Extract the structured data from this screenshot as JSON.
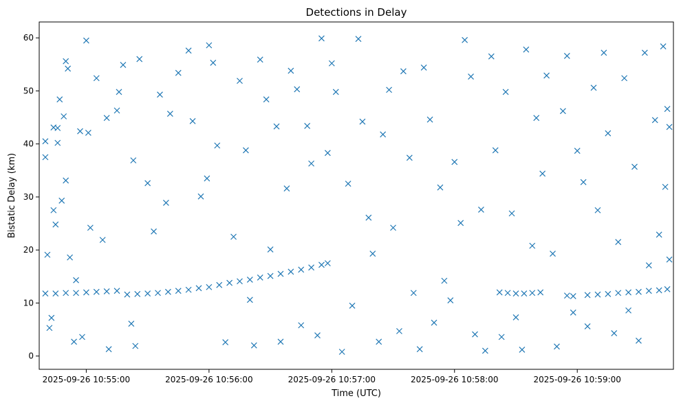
{
  "chart_data": {
    "type": "scatter",
    "title": "Detections in Delay",
    "xlabel": "Time (UTC)",
    "ylabel": "Bistatic Delay (km)",
    "marker": "x",
    "color": "#1f77b4",
    "grid": false,
    "legend": "none",
    "x_domain": [
      "2025-09-26 10:54:37",
      "2025-09-26 10:59:47"
    ],
    "ylim": [
      -2.5,
      63
    ],
    "xticks": [
      "2025-09-26 10:55:00",
      "2025-09-26 10:56:00",
      "2025-09-26 10:57:00",
      "2025-09-26 10:58:00",
      "2025-09-26 10:59:00"
    ],
    "yticks": [
      "0",
      "10",
      "20",
      "30",
      "40",
      "50",
      "60"
    ],
    "series": [
      {
        "name": "",
        "description": "Periodic target tracks (dense diagonal streaks)",
        "points": [
          [
            "2025-09-26 10:54:40",
            11.8
          ],
          [
            "2025-09-26 10:54:45",
            11.8
          ],
          [
            "2025-09-26 10:54:50",
            11.9
          ],
          [
            "2025-09-26 10:54:55",
            11.9
          ],
          [
            "2025-09-26 10:55:00",
            12.0
          ],
          [
            "2025-09-26 10:55:05",
            12.1
          ],
          [
            "2025-09-26 10:55:10",
            12.2
          ],
          [
            "2025-09-26 10:55:15",
            12.3
          ],
          [
            "2025-09-26 10:55:20",
            11.6
          ],
          [
            "2025-09-26 10:55:25",
            11.7
          ],
          [
            "2025-09-26 10:55:30",
            11.8
          ],
          [
            "2025-09-26 10:55:35",
            11.9
          ],
          [
            "2025-09-26 10:55:40",
            12.1
          ],
          [
            "2025-09-26 10:55:45",
            12.3
          ],
          [
            "2025-09-26 10:55:50",
            12.5
          ],
          [
            "2025-09-26 10:55:55",
            12.8
          ],
          [
            "2025-09-26 10:56:00",
            13.0
          ],
          [
            "2025-09-26 10:56:05",
            13.4
          ],
          [
            "2025-09-26 10:56:10",
            13.8
          ],
          [
            "2025-09-26 10:56:15",
            14.1
          ],
          [
            "2025-09-26 10:56:20",
            14.4
          ],
          [
            "2025-09-26 10:56:25",
            14.8
          ],
          [
            "2025-09-26 10:56:30",
            15.1
          ],
          [
            "2025-09-26 10:56:35",
            15.5
          ],
          [
            "2025-09-26 10:56:40",
            15.9
          ],
          [
            "2025-09-26 10:56:45",
            16.3
          ],
          [
            "2025-09-26 10:56:50",
            16.7
          ],
          [
            "2025-09-26 10:56:55",
            17.2
          ],
          [
            "2025-09-26 10:56:58",
            17.5
          ],
          [
            "2025-09-26 10:58:22",
            12.0
          ],
          [
            "2025-09-26 10:58:26",
            11.9
          ],
          [
            "2025-09-26 10:58:30",
            11.8
          ],
          [
            "2025-09-26 10:58:34",
            11.8
          ],
          [
            "2025-09-26 10:58:38",
            11.9
          ],
          [
            "2025-09-26 10:58:42",
            12.0
          ],
          [
            "2025-09-26 10:58:55",
            11.4
          ],
          [
            "2025-09-26 10:58:58",
            11.3
          ],
          [
            "2025-09-26 10:59:05",
            11.5
          ],
          [
            "2025-09-26 10:59:10",
            11.6
          ],
          [
            "2025-09-26 10:59:15",
            11.7
          ],
          [
            "2025-09-26 10:59:20",
            11.9
          ],
          [
            "2025-09-26 10:59:25",
            12.0
          ],
          [
            "2025-09-26 10:59:30",
            12.1
          ],
          [
            "2025-09-26 10:59:35",
            12.3
          ],
          [
            "2025-09-26 10:59:40",
            12.4
          ],
          [
            "2025-09-26 10:59:44",
            12.6
          ]
        ]
      },
      {
        "name": "",
        "description": "Scattered clutter detections (subset, estimated)",
        "points": [
          [
            "2025-09-26 10:54:40",
            37.5
          ],
          [
            "2025-09-26 10:54:40",
            40.5
          ],
          [
            "2025-09-26 10:54:41",
            19.1
          ],
          [
            "2025-09-26 10:54:42",
            5.3
          ],
          [
            "2025-09-26 10:54:43",
            7.2
          ],
          [
            "2025-09-26 10:54:44",
            43.1
          ],
          [
            "2025-09-26 10:54:44",
            27.5
          ],
          [
            "2025-09-26 10:54:45",
            24.8
          ],
          [
            "2025-09-26 10:54:46",
            40.2
          ],
          [
            "2025-09-26 10:54:46",
            43.0
          ],
          [
            "2025-09-26 10:54:47",
            48.4
          ],
          [
            "2025-09-26 10:54:48",
            29.3
          ],
          [
            "2025-09-26 10:54:49",
            45.2
          ],
          [
            "2025-09-26 10:54:50",
            55.6
          ],
          [
            "2025-09-26 10:54:50",
            33.1
          ],
          [
            "2025-09-26 10:54:51",
            54.2
          ],
          [
            "2025-09-26 10:54:52",
            18.6
          ],
          [
            "2025-09-26 10:54:54",
            2.7
          ],
          [
            "2025-09-26 10:54:55",
            14.3
          ],
          [
            "2025-09-26 10:54:57",
            42.4
          ],
          [
            "2025-09-26 10:54:58",
            3.6
          ],
          [
            "2025-09-26 10:55:00",
            59.5
          ],
          [
            "2025-09-26 10:55:01",
            42.1
          ],
          [
            "2025-09-26 10:55:02",
            24.2
          ],
          [
            "2025-09-26 10:55:05",
            52.4
          ],
          [
            "2025-09-26 10:55:08",
            21.9
          ],
          [
            "2025-09-26 10:55:10",
            44.9
          ],
          [
            "2025-09-26 10:55:11",
            1.3
          ],
          [
            "2025-09-26 10:55:15",
            46.3
          ],
          [
            "2025-09-26 10:55:16",
            49.8
          ],
          [
            "2025-09-26 10:55:18",
            54.9
          ],
          [
            "2025-09-26 10:55:22",
            6.1
          ],
          [
            "2025-09-26 10:55:23",
            36.9
          ],
          [
            "2025-09-26 10:55:24",
            1.9
          ],
          [
            "2025-09-26 10:55:26",
            56.0
          ],
          [
            "2025-09-26 10:55:30",
            32.6
          ],
          [
            "2025-09-26 10:55:33",
            23.5
          ],
          [
            "2025-09-26 10:55:36",
            49.3
          ],
          [
            "2025-09-26 10:55:39",
            28.9
          ],
          [
            "2025-09-26 10:55:41",
            45.7
          ],
          [
            "2025-09-26 10:55:45",
            53.4
          ],
          [
            "2025-09-26 10:55:50",
            57.6
          ],
          [
            "2025-09-26 10:55:52",
            44.3
          ],
          [
            "2025-09-26 10:55:56",
            30.1
          ],
          [
            "2025-09-26 10:55:59",
            33.5
          ],
          [
            "2025-09-26 10:56:00",
            58.6
          ],
          [
            "2025-09-26 10:56:02",
            55.3
          ],
          [
            "2025-09-26 10:56:04",
            39.7
          ],
          [
            "2025-09-26 10:56:08",
            2.6
          ],
          [
            "2025-09-26 10:56:12",
            22.5
          ],
          [
            "2025-09-26 10:56:15",
            51.9
          ],
          [
            "2025-09-26 10:56:18",
            38.8
          ],
          [
            "2025-09-26 10:56:20",
            10.6
          ],
          [
            "2025-09-26 10:56:22",
            2.0
          ],
          [
            "2025-09-26 10:56:25",
            55.9
          ],
          [
            "2025-09-26 10:56:28",
            48.4
          ],
          [
            "2025-09-26 10:56:30",
            20.1
          ],
          [
            "2025-09-26 10:56:33",
            43.3
          ],
          [
            "2025-09-26 10:56:35",
            2.7
          ],
          [
            "2025-09-26 10:56:38",
            31.6
          ],
          [
            "2025-09-26 10:56:40",
            53.8
          ],
          [
            "2025-09-26 10:56:43",
            50.3
          ],
          [
            "2025-09-26 10:56:45",
            5.8
          ],
          [
            "2025-09-26 10:56:48",
            43.4
          ],
          [
            "2025-09-26 10:56:50",
            36.3
          ],
          [
            "2025-09-26 10:56:53",
            3.9
          ],
          [
            "2025-09-26 10:56:55",
            59.9
          ],
          [
            "2025-09-26 10:56:58",
            38.3
          ],
          [
            "2025-09-26 10:57:00",
            55.2
          ],
          [
            "2025-09-26 10:57:02",
            49.8
          ],
          [
            "2025-09-26 10:57:05",
            0.8
          ],
          [
            "2025-09-26 10:57:08",
            32.5
          ],
          [
            "2025-09-26 10:57:10",
            9.5
          ],
          [
            "2025-09-26 10:57:13",
            59.8
          ],
          [
            "2025-09-26 10:57:15",
            44.2
          ],
          [
            "2025-09-26 10:57:18",
            26.1
          ],
          [
            "2025-09-26 10:57:20",
            19.3
          ],
          [
            "2025-09-26 10:57:23",
            2.7
          ],
          [
            "2025-09-26 10:57:25",
            41.8
          ],
          [
            "2025-09-26 10:57:28",
            50.2
          ],
          [
            "2025-09-26 10:57:30",
            24.2
          ],
          [
            "2025-09-26 10:57:33",
            4.7
          ],
          [
            "2025-09-26 10:57:35",
            53.7
          ],
          [
            "2025-09-26 10:57:38",
            37.4
          ],
          [
            "2025-09-26 10:57:40",
            11.9
          ],
          [
            "2025-09-26 10:57:43",
            1.3
          ],
          [
            "2025-09-26 10:57:45",
            54.4
          ],
          [
            "2025-09-26 10:57:48",
            44.6
          ],
          [
            "2025-09-26 10:57:50",
            6.3
          ],
          [
            "2025-09-26 10:57:53",
            31.8
          ],
          [
            "2025-09-26 10:57:55",
            14.2
          ],
          [
            "2025-09-26 10:57:58",
            10.5
          ],
          [
            "2025-09-26 10:58:00",
            36.6
          ],
          [
            "2025-09-26 10:58:03",
            25.1
          ],
          [
            "2025-09-26 10:58:05",
            59.6
          ],
          [
            "2025-09-26 10:58:08",
            52.7
          ],
          [
            "2025-09-26 10:58:10",
            4.1
          ],
          [
            "2025-09-26 10:58:13",
            27.6
          ],
          [
            "2025-09-26 10:58:15",
            1.0
          ],
          [
            "2025-09-26 10:58:18",
            56.5
          ],
          [
            "2025-09-26 10:58:20",
            38.8
          ],
          [
            "2025-09-26 10:58:23",
            3.6
          ],
          [
            "2025-09-26 10:58:25",
            49.8
          ],
          [
            "2025-09-26 10:58:28",
            26.9
          ],
          [
            "2025-09-26 10:58:30",
            7.3
          ],
          [
            "2025-09-26 10:58:33",
            1.2
          ],
          [
            "2025-09-26 10:58:35",
            57.8
          ],
          [
            "2025-09-26 10:58:38",
            20.8
          ],
          [
            "2025-09-26 10:58:40",
            44.9
          ],
          [
            "2025-09-26 10:58:43",
            34.4
          ],
          [
            "2025-09-26 10:58:45",
            52.9
          ],
          [
            "2025-09-26 10:58:48",
            19.3
          ],
          [
            "2025-09-26 10:58:50",
            1.8
          ],
          [
            "2025-09-26 10:58:53",
            46.2
          ],
          [
            "2025-09-26 10:58:55",
            56.6
          ],
          [
            "2025-09-26 10:58:58",
            8.2
          ],
          [
            "2025-09-26 10:59:00",
            38.7
          ],
          [
            "2025-09-26 10:59:03",
            32.8
          ],
          [
            "2025-09-26 10:59:05",
            5.6
          ],
          [
            "2025-09-26 10:59:08",
            50.6
          ],
          [
            "2025-09-26 10:59:10",
            27.5
          ],
          [
            "2025-09-26 10:59:13",
            57.2
          ],
          [
            "2025-09-26 10:59:15",
            42.0
          ],
          [
            "2025-09-26 10:59:18",
            4.3
          ],
          [
            "2025-09-26 10:59:20",
            21.5
          ],
          [
            "2025-09-26 10:59:23",
            52.4
          ],
          [
            "2025-09-26 10:59:25",
            8.6
          ],
          [
            "2025-09-26 10:59:28",
            35.7
          ],
          [
            "2025-09-26 10:59:30",
            2.9
          ],
          [
            "2025-09-26 10:59:33",
            57.2
          ],
          [
            "2025-09-26 10:59:35",
            17.1
          ],
          [
            "2025-09-26 10:59:38",
            44.5
          ],
          [
            "2025-09-26 10:59:40",
            22.9
          ],
          [
            "2025-09-26 10:59:42",
            58.4
          ],
          [
            "2025-09-26 10:59:43",
            31.9
          ],
          [
            "2025-09-26 10:59:44",
            46.6
          ],
          [
            "2025-09-26 10:59:45",
            43.2
          ],
          [
            "2025-09-26 10:59:45",
            18.2
          ]
        ]
      }
    ]
  }
}
